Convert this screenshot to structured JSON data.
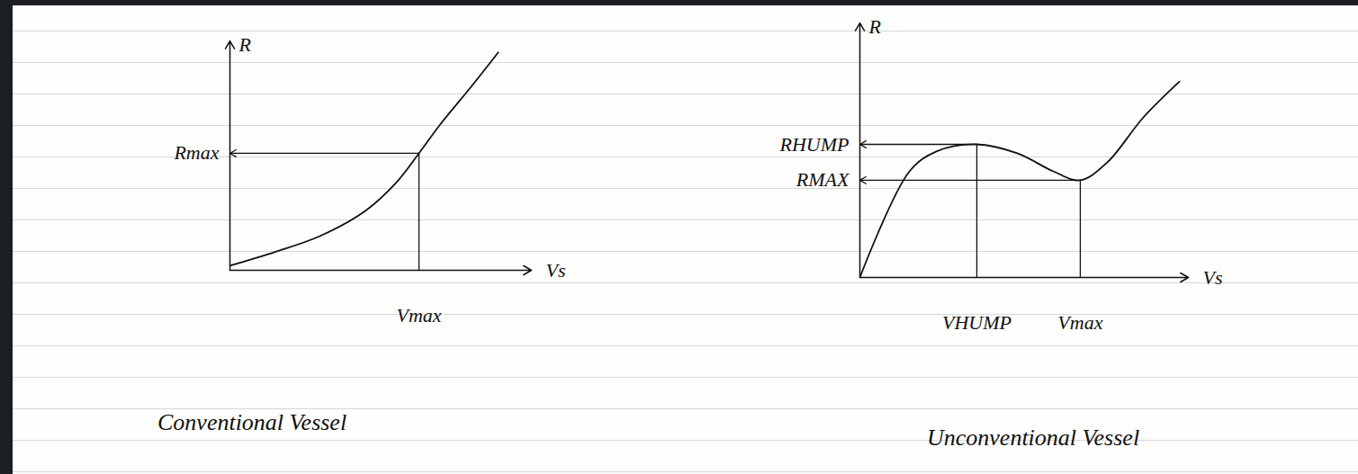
{
  "chart_data": [
    {
      "type": "line",
      "title": "Conventional Vessel",
      "xlabel": "Vs",
      "ylabel": "R",
      "x": [
        0,
        1.5,
        3,
        4.5,
        5.5,
        6.27,
        7,
        8,
        8.9
      ],
      "values": [
        0.2,
        0.8,
        1.5,
        2.6,
        3.8,
        5.1,
        6.4,
        8.0,
        9.5
      ],
      "color": "#111111",
      "xlim": [
        0,
        10
      ],
      "ylim": [
        0,
        10
      ],
      "tick_labels": false,
      "grid": false,
      "reference_points": [
        {
          "x": 6.27,
          "y": 5.1,
          "x_label": "Vmax",
          "y_label": "Rmax"
        }
      ]
    },
    {
      "type": "line",
      "title": "Unconventional Vessel",
      "xlabel": "Vs",
      "ylabel": "R",
      "x": [
        0,
        1.51,
        2.33,
        3.56,
        4.79,
        5.89,
        6.71,
        7.53,
        8.63,
        9.73
      ],
      "values": [
        0,
        4.17,
        4.95,
        5.23,
        4.88,
        4.17,
        3.82,
        4.52,
        6.29,
        7.7
      ],
      "color": "#111111",
      "xlim": [
        0,
        10
      ],
      "ylim": [
        0,
        10
      ],
      "tick_labels": false,
      "grid": false,
      "reference_points": [
        {
          "x": 3.56,
          "y": 5.23,
          "x_label": "VHUMP",
          "y_label": "RHUMP"
        },
        {
          "x": 6.71,
          "y": 3.82,
          "x_label": "Vmax",
          "y_label": "RMAX"
        }
      ]
    }
  ]
}
